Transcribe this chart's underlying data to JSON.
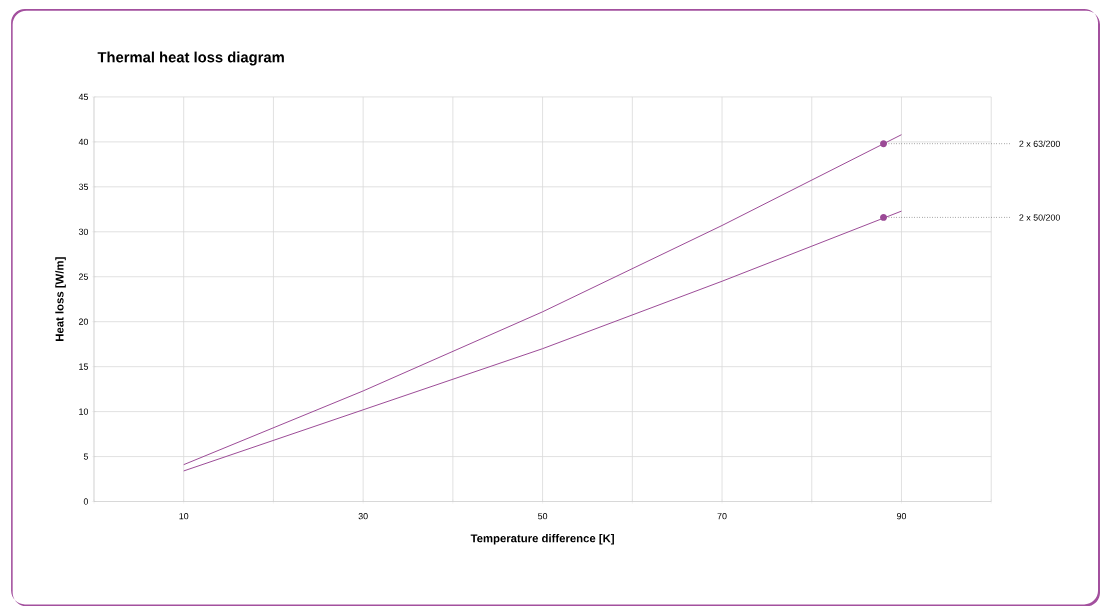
{
  "chart_data": {
    "type": "line",
    "title": "Thermal heat loss diagram",
    "xlabel": "Temperature difference [K]",
    "ylabel": "Heat loss [W/m]",
    "x": [
      10,
      30,
      50,
      70,
      90
    ],
    "series": [
      {
        "color": "#9b4a96",
        "values": [
          4.1,
          12.3,
          21.1,
          30.7,
          40.8
        ]
      },
      {
        "color": "#9b4a96",
        "values": [
          3.4,
          10.2,
          17.0,
          24.5,
          32.3
        ]
      }
    ],
    "xlim": [
      0,
      100
    ],
    "xticks": [
      {
        "value": 0,
        "label": null
      },
      10,
      {
        "value": 20,
        "label": null
      },
      30,
      {
        "value": 40,
        "label": null
      },
      50,
      {
        "value": 60,
        "label": null
      },
      70,
      {
        "value": 80,
        "label": null
      },
      90,
      {
        "value": 100,
        "label": null
      }
    ],
    "ylim": [
      0,
      45
    ],
    "yticks": [
      0,
      5,
      10,
      15,
      20,
      25,
      30,
      35,
      40,
      45
    ],
    "grid": true,
    "annotations": [
      {
        "text": "2 x 63/200",
        "x": 88,
        "y": 39.8
      },
      {
        "text": "2 x 50/200",
        "x": 88,
        "y": 31.6
      }
    ]
  }
}
